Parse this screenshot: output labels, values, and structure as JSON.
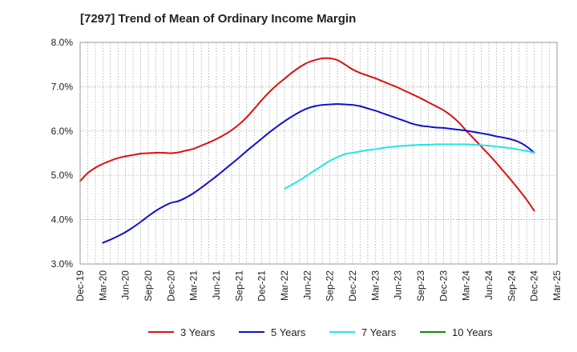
{
  "title": "[7297]  Trend of Mean of Ordinary Income Margin",
  "chart_data": {
    "type": "line",
    "title": "[7297]  Trend of Mean of Ordinary Income Margin",
    "xlabel": "",
    "ylabel": "",
    "ylim": [
      3.0,
      8.0
    ],
    "y_ticks": [
      "3.0%",
      "4.0%",
      "5.0%",
      "6.0%",
      "7.0%",
      "8.0%"
    ],
    "x_ticks": [
      "Dec-19",
      "Mar-20",
      "Jun-20",
      "Sep-20",
      "Dec-20",
      "Mar-21",
      "Jun-21",
      "Sep-21",
      "Dec-21",
      "Mar-22",
      "Jun-22",
      "Sep-22",
      "Dec-22",
      "Mar-23",
      "Jun-23",
      "Sep-23",
      "Dec-23",
      "Mar-24",
      "Jun-24",
      "Sep-24",
      "Dec-24",
      "Mar-25"
    ],
    "x_range": [
      "2019-12",
      "2025-03"
    ],
    "grid": true,
    "legend_position": "bottom",
    "series": [
      {
        "name": "3 Years",
        "color": "#dd1111",
        "points": [
          [
            "2019-12",
            4.87
          ],
          [
            "2020-01",
            5.05
          ],
          [
            "2020-02",
            5.17
          ],
          [
            "2020-03",
            5.26
          ],
          [
            "2020-04",
            5.33
          ],
          [
            "2020-05",
            5.39
          ],
          [
            "2020-06",
            5.43
          ],
          [
            "2020-07",
            5.46
          ],
          [
            "2020-08",
            5.49
          ],
          [
            "2020-09",
            5.5
          ],
          [
            "2020-10",
            5.51
          ],
          [
            "2020-11",
            5.51
          ],
          [
            "2020-12",
            5.5
          ],
          [
            "2021-01",
            5.52
          ],
          [
            "2021-02",
            5.56
          ],
          [
            "2021-03",
            5.6
          ],
          [
            "2021-04",
            5.67
          ],
          [
            "2021-05",
            5.74
          ],
          [
            "2021-06",
            5.82
          ],
          [
            "2021-07",
            5.91
          ],
          [
            "2021-08",
            6.02
          ],
          [
            "2021-09",
            6.15
          ],
          [
            "2021-10",
            6.31
          ],
          [
            "2021-11",
            6.5
          ],
          [
            "2021-12",
            6.7
          ],
          [
            "2022-01",
            6.88
          ],
          [
            "2022-02",
            7.04
          ],
          [
            "2022-03",
            7.18
          ],
          [
            "2022-04",
            7.32
          ],
          [
            "2022-05",
            7.44
          ],
          [
            "2022-06",
            7.54
          ],
          [
            "2022-07",
            7.6
          ],
          [
            "2022-08",
            7.64
          ],
          [
            "2022-09",
            7.64
          ],
          [
            "2022-10",
            7.6
          ],
          [
            "2022-11",
            7.5
          ],
          [
            "2022-12",
            7.39
          ],
          [
            "2023-01",
            7.31
          ],
          [
            "2023-02",
            7.25
          ],
          [
            "2023-03",
            7.19
          ],
          [
            "2023-04",
            7.12
          ],
          [
            "2023-05",
            7.05
          ],
          [
            "2023-06",
            6.98
          ],
          [
            "2023-07",
            6.9
          ],
          [
            "2023-08",
            6.82
          ],
          [
            "2023-09",
            6.74
          ],
          [
            "2023-10",
            6.65
          ],
          [
            "2023-11",
            6.56
          ],
          [
            "2023-12",
            6.47
          ],
          [
            "2024-01",
            6.35
          ],
          [
            "2024-02",
            6.2
          ],
          [
            "2024-03",
            6.01
          ],
          [
            "2024-04",
            5.83
          ],
          [
            "2024-05",
            5.65
          ],
          [
            "2024-06",
            5.47
          ],
          [
            "2024-07",
            5.28
          ],
          [
            "2024-08",
            5.08
          ],
          [
            "2024-09",
            4.88
          ],
          [
            "2024-10",
            4.67
          ],
          [
            "2024-11",
            4.45
          ],
          [
            "2024-12",
            4.2
          ]
        ]
      },
      {
        "name": "5 Years",
        "color": "#1111cc",
        "points": [
          [
            "2020-03",
            3.48
          ],
          [
            "2020-04",
            3.55
          ],
          [
            "2020-05",
            3.63
          ],
          [
            "2020-06",
            3.72
          ],
          [
            "2020-07",
            3.83
          ],
          [
            "2020-08",
            3.95
          ],
          [
            "2020-09",
            4.08
          ],
          [
            "2020-10",
            4.2
          ],
          [
            "2020-11",
            4.3
          ],
          [
            "2020-12",
            4.38
          ],
          [
            "2021-01",
            4.42
          ],
          [
            "2021-02",
            4.5
          ],
          [
            "2021-03",
            4.6
          ],
          [
            "2021-04",
            4.72
          ],
          [
            "2021-05",
            4.85
          ],
          [
            "2021-06",
            4.98
          ],
          [
            "2021-07",
            5.12
          ],
          [
            "2021-08",
            5.26
          ],
          [
            "2021-09",
            5.4
          ],
          [
            "2021-10",
            5.55
          ],
          [
            "2021-11",
            5.69
          ],
          [
            "2021-12",
            5.83
          ],
          [
            "2022-01",
            5.97
          ],
          [
            "2022-02",
            6.1
          ],
          [
            "2022-03",
            6.22
          ],
          [
            "2022-04",
            6.33
          ],
          [
            "2022-05",
            6.43
          ],
          [
            "2022-06",
            6.51
          ],
          [
            "2022-07",
            6.56
          ],
          [
            "2022-08",
            6.59
          ],
          [
            "2022-09",
            6.6
          ],
          [
            "2022-10",
            6.61
          ],
          [
            "2022-11",
            6.6
          ],
          [
            "2022-12",
            6.59
          ],
          [
            "2023-01",
            6.56
          ],
          [
            "2023-02",
            6.51
          ],
          [
            "2023-03",
            6.46
          ],
          [
            "2023-04",
            6.4
          ],
          [
            "2023-05",
            6.34
          ],
          [
            "2023-06",
            6.28
          ],
          [
            "2023-07",
            6.22
          ],
          [
            "2023-08",
            6.16
          ],
          [
            "2023-09",
            6.12
          ],
          [
            "2023-10",
            6.1
          ],
          [
            "2023-11",
            6.08
          ],
          [
            "2023-12",
            6.07
          ],
          [
            "2024-01",
            6.05
          ],
          [
            "2024-02",
            6.03
          ],
          [
            "2024-03",
            6.01
          ],
          [
            "2024-04",
            5.98
          ],
          [
            "2024-05",
            5.95
          ],
          [
            "2024-06",
            5.92
          ],
          [
            "2024-07",
            5.88
          ],
          [
            "2024-08",
            5.85
          ],
          [
            "2024-09",
            5.81
          ],
          [
            "2024-10",
            5.75
          ],
          [
            "2024-11",
            5.65
          ],
          [
            "2024-12",
            5.51
          ]
        ]
      },
      {
        "name": "7 Years",
        "color": "#22e5e5",
        "points": [
          [
            "2022-03",
            4.7
          ],
          [
            "2022-04",
            4.79
          ],
          [
            "2022-05",
            4.89
          ],
          [
            "2022-06",
            5.0
          ],
          [
            "2022-07",
            5.11
          ],
          [
            "2022-08",
            5.22
          ],
          [
            "2022-09",
            5.33
          ],
          [
            "2022-10",
            5.41
          ],
          [
            "2022-11",
            5.48
          ],
          [
            "2022-12",
            5.51
          ],
          [
            "2023-01",
            5.54
          ],
          [
            "2023-02",
            5.57
          ],
          [
            "2023-03",
            5.59
          ],
          [
            "2023-04",
            5.62
          ],
          [
            "2023-05",
            5.64
          ],
          [
            "2023-06",
            5.66
          ],
          [
            "2023-07",
            5.67
          ],
          [
            "2023-08",
            5.68
          ],
          [
            "2023-09",
            5.69
          ],
          [
            "2023-10",
            5.69
          ],
          [
            "2023-11",
            5.7
          ],
          [
            "2023-12",
            5.7
          ],
          [
            "2024-01",
            5.7
          ],
          [
            "2024-02",
            5.7
          ],
          [
            "2024-03",
            5.7
          ],
          [
            "2024-04",
            5.69
          ],
          [
            "2024-05",
            5.68
          ],
          [
            "2024-06",
            5.67
          ],
          [
            "2024-07",
            5.65
          ],
          [
            "2024-08",
            5.63
          ],
          [
            "2024-09",
            5.61
          ],
          [
            "2024-10",
            5.58
          ],
          [
            "2024-11",
            5.55
          ],
          [
            "2024-12",
            5.51
          ]
        ]
      },
      {
        "name": "10 Years",
        "color": "#118811",
        "points": []
      }
    ]
  }
}
